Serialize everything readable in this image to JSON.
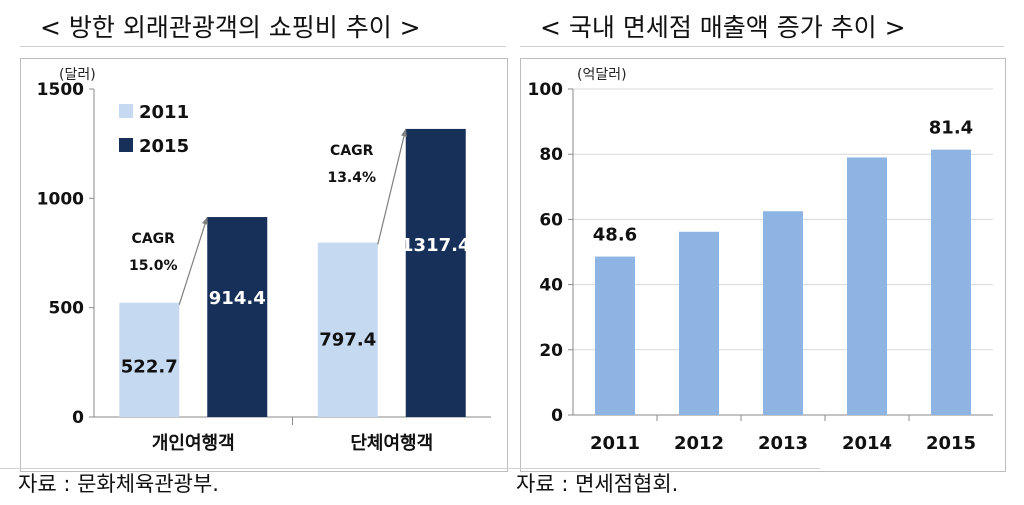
{
  "titles": {
    "left": "< 방한 외래관광객의 쇼핑비 추이 >",
    "right": "< 국내 면세점 매출액 증가 추이 >"
  },
  "sources": {
    "left": "자료 : 문화체육관광부.",
    "right": "자료 : 면세점협회."
  },
  "colors": {
    "series_2011": "#c5d9f1",
    "series_2015": "#17305a",
    "bar_right": "#8db4e2",
    "arrow": "#7f7f7f",
    "grid": "#d9d9d9"
  },
  "chart_data": [
    {
      "type": "bar",
      "unit_label": "(달러)",
      "categories": [
        "개인여행객",
        "단체여행객"
      ],
      "series": [
        {
          "name": "2011",
          "values": [
            522.7,
            797.4
          ]
        },
        {
          "name": "2015",
          "values": [
            914.4,
            1317.4
          ]
        }
      ],
      "value_labels": [
        [
          "522.7",
          "797.4"
        ],
        [
          "914.4",
          "1317.4"
        ]
      ],
      "yticks": [
        0,
        500,
        1000,
        1500
      ],
      "ylim": [
        0,
        1500
      ],
      "legend": [
        "2011",
        "2015"
      ],
      "legend_position": "top-left",
      "annotations": [
        {
          "category": "개인여행객",
          "line1": "CAGR",
          "line2": "15.0%"
        },
        {
          "category": "단체여행객",
          "line1": "CAGR",
          "line2": "13.4%"
        }
      ]
    },
    {
      "type": "bar",
      "unit_label": "(억달러)",
      "categories": [
        "2011",
        "2012",
        "2013",
        "2014",
        "2015"
      ],
      "values": [
        48.6,
        56.2,
        62.5,
        79.0,
        81.4
      ],
      "value_labels": {
        "2011": "48.6",
        "2015": "81.4"
      },
      "yticks": [
        0,
        20,
        40,
        60,
        80,
        100
      ],
      "ylim": [
        0,
        100
      ],
      "grid": true
    }
  ]
}
